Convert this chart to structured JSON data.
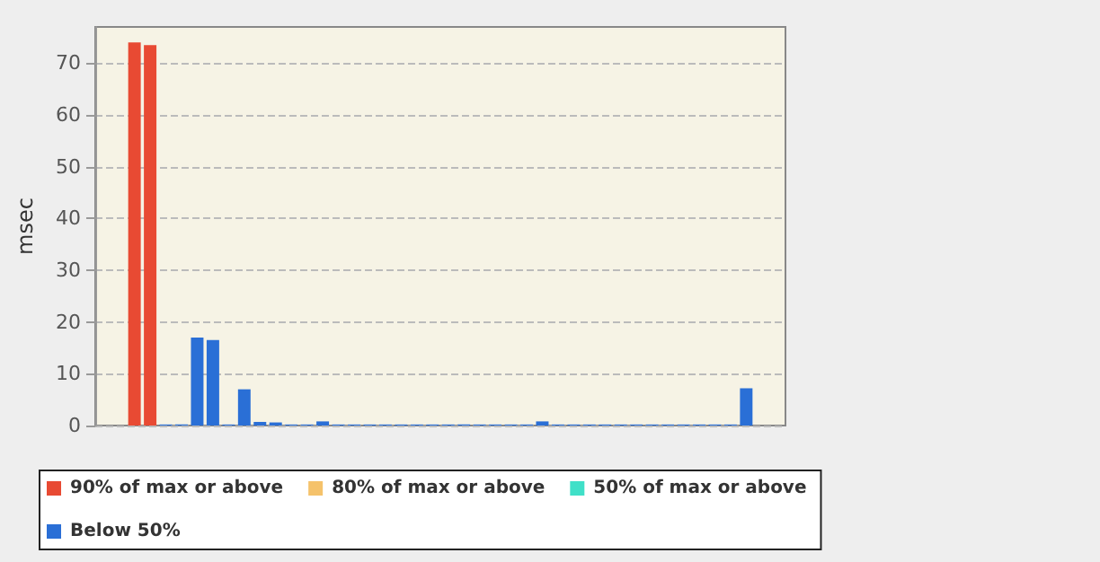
{
  "chart_data": {
    "type": "bar",
    "ylabel": "msec",
    "categories": [
      null,
      null,
      null,
      null,
      null,
      null,
      null,
      null,
      null,
      null,
      null,
      null,
      null,
      null,
      null,
      null,
      null,
      null,
      null,
      null,
      null,
      null,
      null,
      null,
      null,
      null,
      null,
      null,
      null,
      null,
      null,
      null,
      null,
      null,
      null,
      null,
      null,
      null,
      null,
      null,
      null,
      null,
      null,
      null
    ],
    "series": [
      {
        "name": "90% of max or above",
        "color": "#e84a33",
        "values": [
          null,
          null,
          74,
          73.5,
          null,
          null,
          null,
          null,
          null,
          null,
          null,
          null,
          null,
          null,
          null,
          null,
          null,
          null,
          null,
          null,
          null,
          null,
          null,
          null,
          null,
          null,
          null,
          null,
          null,
          null,
          null,
          null,
          null,
          null,
          null,
          null,
          null,
          null,
          null,
          null,
          null,
          null,
          null,
          null
        ]
      },
      {
        "name": "80% of max or above",
        "color": "#f5c26b",
        "values": [
          null,
          null,
          null,
          null,
          null,
          null,
          null,
          null,
          null,
          null,
          null,
          null,
          null,
          null,
          null,
          null,
          null,
          null,
          null,
          null,
          null,
          null,
          null,
          null,
          null,
          null,
          null,
          null,
          null,
          null,
          null,
          null,
          null,
          null,
          null,
          null,
          null,
          null,
          null,
          null,
          null,
          null,
          null,
          null
        ]
      },
      {
        "name": "50% of max or above",
        "color": "#40e0c8",
        "values": [
          null,
          null,
          null,
          null,
          null,
          null,
          null,
          null,
          null,
          null,
          null,
          null,
          null,
          null,
          null,
          null,
          null,
          null,
          null,
          null,
          null,
          null,
          null,
          null,
          null,
          null,
          null,
          null,
          null,
          null,
          null,
          null,
          null,
          null,
          null,
          null,
          null,
          null,
          null,
          null,
          null,
          null,
          null,
          null
        ]
      },
      {
        "name": "Below 50%",
        "color": "#2a6fd6",
        "values": [
          null,
          null,
          null,
          null,
          0.2,
          0.2,
          17,
          16.5,
          0.2,
          7,
          0.7,
          0.6,
          0.2,
          0.2,
          0.8,
          0.2,
          0.2,
          0.2,
          0.2,
          0.2,
          0.2,
          0.2,
          0.2,
          0.2,
          0.2,
          0.2,
          0.2,
          0.2,
          0.8,
          0.2,
          0.2,
          0.2,
          0.2,
          0.2,
          0.2,
          0.2,
          0.2,
          0.2,
          0.2,
          0.2,
          0.2,
          7.2,
          null,
          null
        ]
      }
    ],
    "ylim": [
      0,
      77
    ],
    "yticks": [
      0,
      10,
      20,
      30,
      40,
      50,
      60,
      70
    ],
    "grid": "y",
    "legend": "bottom",
    "tick_labels": "y"
  }
}
